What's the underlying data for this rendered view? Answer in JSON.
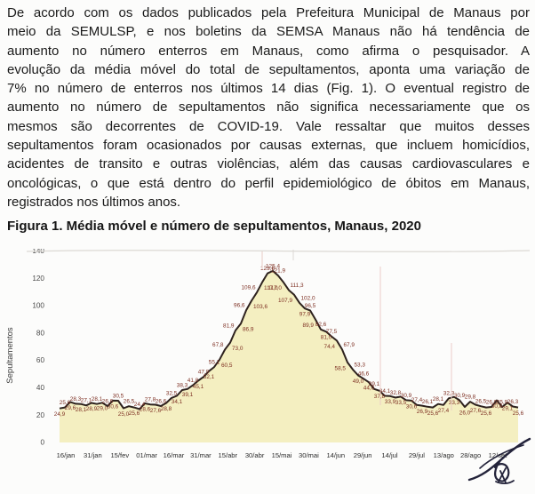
{
  "document": {
    "paragraph_lines": [
      "De acordo com os dados publicados pela Prefeitura Municipal de Manaus por",
      "meio da SEMULSP, e nos boletins da SEMSA Manaus não há tendência de",
      "aumento no número enterros em Manaus, como afirma o pesquisador. A",
      "evolução da média móvel do total de sepultamentos, aponta uma variação de",
      "7% no número de enterros nos últimos 14 dias (Fig. 1). O eventual registro de",
      "aumento no número de sepultamentos não significa necessariamente que os",
      "mesmos são decorrentes de COVID-19.  Vale ressaltar que muitos desses",
      "sepultamentos foram ocasionados por causas externas, que incluem homicídios,",
      "acidentes de transito e outras violências, além das causas cardiovasculares e",
      "oncológicas, o que está dentro do perfil epidemiológico de óbitos em Manaus,",
      "registrados nos últimos anos."
    ]
  },
  "chart_data": {
    "type": "area",
    "title": "Figura 1. Média móvel e número de sepultamentos, Manaus, 2020",
    "xlabel": "",
    "ylabel": "Sepultamentos",
    "ylim": [
      0,
      140
    ],
    "yticks": [
      0,
      20,
      40,
      60,
      80,
      100,
      120,
      140
    ],
    "xticks": [
      "16/jan",
      "31/jan",
      "15/fev",
      "01/mar",
      "16/mar",
      "31/mar",
      "15/abr",
      "30/abr",
      "15/mai",
      "30/mai",
      "14/jun",
      "29/jun",
      "14/jul",
      "29/jul",
      "13/ago",
      "28/ago",
      "12/set"
    ],
    "decimal_separator": ",",
    "data_labels_visible": true,
    "grid": false,
    "legend": "none",
    "values": [
      24.9,
      25.6,
      29.6,
      28.3,
      28.1,
      27.1,
      28.9,
      28.1,
      29.0,
      26.6,
      30.6,
      30.5,
      25.0,
      26.5,
      25.6,
      24.4,
      28.6,
      27.8,
      27.6,
      26.6,
      28.8,
      32.5,
      34.1,
      38.3,
      39.1,
      41.8,
      45.1,
      47.9,
      52.1,
      55.1,
      60.5,
      67.8,
      73.0,
      81.9,
      86.9,
      96.6,
      103.6,
      109.6,
      117.0,
      123.6,
      125.4,
      121.9,
      117.0,
      111.3,
      107.9,
      102.0,
      97.9,
      96.5,
      89.9,
      82.6,
      81.0,
      77.5,
      74.4,
      67.9,
      58.5,
      53.3,
      49.0,
      46.6,
      44.0,
      39.1,
      37.8,
      34.1,
      33.9,
      32.8,
      33.5,
      30.9,
      30.6,
      27.4,
      26.9,
      26.1,
      25.6,
      28.1,
      27.4,
      32.3,
      33.3,
      30.9,
      26.0,
      29.8,
      27.6,
      26.5,
      25.6,
      26.0,
      30.8,
      25.9,
      29.1,
      26.3,
      25.6
    ],
    "colors": {
      "line": "#2e221e",
      "area_fill": "#f4efc1",
      "data_labels": "#7e3023",
      "axis_text": "#4a4a4a"
    }
  },
  "signature": {
    "ink_color": "#23233a"
  }
}
